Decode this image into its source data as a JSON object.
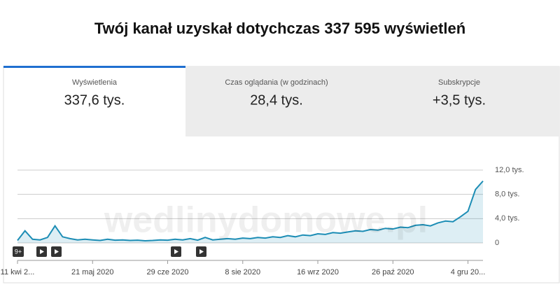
{
  "header": {
    "title": "Twój kanał uzyskał dotychczas 337 595 wyświetleń"
  },
  "tabs": [
    {
      "label": "Wyświetlenia",
      "value": "337,6 tys."
    },
    {
      "label": "Czas oglądania (w godzinach)",
      "value": "28,4 tys."
    },
    {
      "label": "Subskrypcje",
      "value": "+3,5 tys."
    }
  ],
  "watermark": "wedlinydomowe.pl",
  "markers": [
    "9+"
  ],
  "chart_data": {
    "type": "line",
    "categories": [
      "11 kwi 2...",
      null,
      null,
      null,
      null,
      null,
      null,
      null,
      null,
      null,
      "21 maj 2020",
      null,
      null,
      null,
      null,
      null,
      null,
      null,
      null,
      null,
      "29 cze 2020",
      null,
      null,
      null,
      null,
      null,
      null,
      null,
      null,
      null,
      "8 sie 2020",
      null,
      null,
      null,
      null,
      null,
      null,
      null,
      null,
      null,
      "16 wrz 2020",
      null,
      null,
      null,
      null,
      null,
      null,
      null,
      null,
      null,
      "26 paź 2020",
      null,
      null,
      null,
      null,
      null,
      null,
      null,
      null,
      null,
      "4 gru 20...",
      null,
      null
    ],
    "values": [
      400,
      2000,
      600,
      500,
      900,
      2800,
      1000,
      700,
      500,
      600,
      500,
      400,
      600,
      450,
      500,
      400,
      450,
      350,
      400,
      500,
      450,
      600,
      500,
      700,
      450,
      900,
      500,
      600,
      700,
      600,
      800,
      700,
      900,
      800,
      1000,
      900,
      1200,
      1000,
      1300,
      1200,
      1500,
      1400,
      1700,
      1600,
      1800,
      2000,
      1900,
      2200,
      2100,
      2400,
      2300,
      2600,
      2500,
      2900,
      3000,
      2800,
      3300,
      3600,
      3500,
      4300,
      5200,
      8800,
      10200
    ],
    "color": "#1c8db5",
    "ylim": [
      0,
      12000
    ],
    "yticks": [
      0,
      {
        "value": 4000,
        "label": "4,0 tys."
      },
      {
        "value": 8000,
        "label": "8,0 tys."
      },
      {
        "value": 12000,
        "label": "12,0 tys."
      }
    ],
    "grid": true
  }
}
